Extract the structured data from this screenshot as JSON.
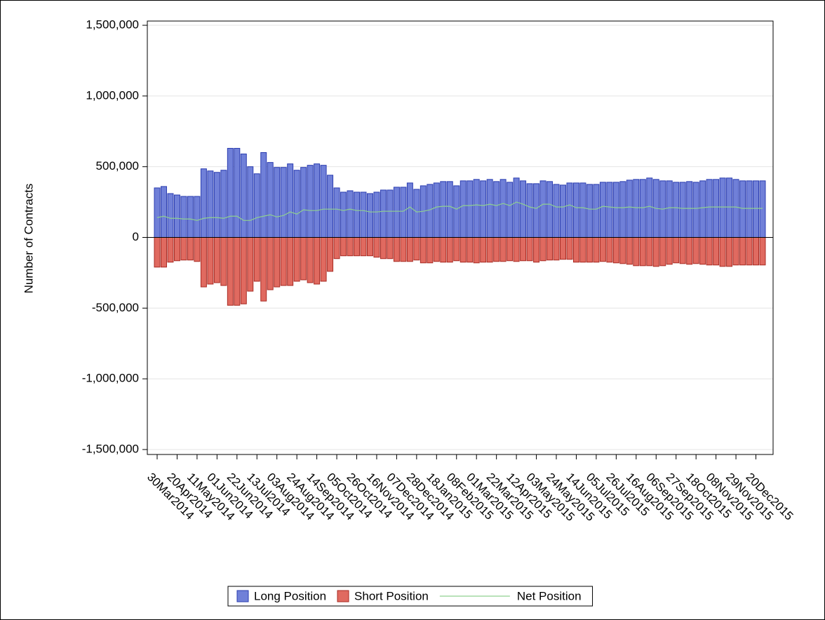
{
  "chart_data": {
    "type": "bar",
    "y_label": "Number of Contracts",
    "categories": [
      "30Mar2014",
      null,
      null,
      "20Apr2014",
      null,
      null,
      "11May2014",
      null,
      null,
      "01Jun2014",
      null,
      null,
      "22Jun2014",
      null,
      null,
      "13Jul2014",
      null,
      null,
      "03Aug2014",
      null,
      null,
      "24Aug2014",
      null,
      null,
      "14Sep2014",
      null,
      null,
      "05Oct2014",
      null,
      null,
      "26Oct2014",
      null,
      null,
      "16Nov2014",
      null,
      null,
      "07Dec2014",
      null,
      null,
      "28Dec2014",
      null,
      null,
      "18Jan2015",
      null,
      null,
      "08Feb2015",
      null,
      null,
      "01Mar2015",
      null,
      null,
      "22Mar2015",
      null,
      null,
      "12Apr2015",
      null,
      null,
      "03May2015",
      null,
      null,
      "24May2015",
      null,
      null,
      "14Jun2015",
      null,
      null,
      "05Jul2015",
      null,
      null,
      "26Jul2015",
      null,
      null,
      "16Aug2015",
      null,
      null,
      "06Sep2015",
      null,
      null,
      "27Sep2015",
      null,
      null,
      "18Oct2015",
      null,
      null,
      "08Nov2015",
      null,
      null,
      "29Nov2015",
      null,
      null,
      "20Dec2015",
      null
    ],
    "series": [
      {
        "name": "Long Position",
        "type": "bar",
        "color": "#7080d8",
        "stroke": "#2a3cb0",
        "values": [
          350000,
          360000,
          310000,
          300000,
          290000,
          290000,
          290000,
          485000,
          470000,
          460000,
          475000,
          630000,
          630000,
          590000,
          500000,
          450000,
          600000,
          530000,
          495000,
          495000,
          520000,
          475000,
          495000,
          510000,
          520000,
          510000,
          440000,
          350000,
          320000,
          330000,
          320000,
          320000,
          310000,
          320000,
          335000,
          335000,
          355000,
          355000,
          385000,
          340000,
          365000,
          375000,
          385000,
          395000,
          395000,
          365000,
          400000,
          400000,
          410000,
          400000,
          410000,
          395000,
          410000,
          390000,
          420000,
          400000,
          380000,
          380000,
          400000,
          395000,
          375000,
          370000,
          385000,
          385000,
          385000,
          375000,
          375000,
          390000,
          390000,
          390000,
          395000,
          405000,
          410000,
          410000,
          420000,
          410000,
          400000,
          400000,
          390000,
          390000,
          395000,
          390000,
          400000,
          410000,
          410000,
          420000,
          420000,
          410000,
          400000,
          400000,
          400000,
          400000
        ]
      },
      {
        "name": "Short Position",
        "type": "bar",
        "color": "#e06a60",
        "stroke": "#a82a22",
        "values": [
          -210000,
          -210000,
          -175000,
          -165000,
          -160000,
          -160000,
          -170000,
          -350000,
          -330000,
          -320000,
          -340000,
          -480000,
          -480000,
          -470000,
          -380000,
          -310000,
          -450000,
          -370000,
          -350000,
          -340000,
          -340000,
          -310000,
          -300000,
          -320000,
          -330000,
          -310000,
          -240000,
          -150000,
          -130000,
          -130000,
          -130000,
          -130000,
          -130000,
          -140000,
          -150000,
          -150000,
          -170000,
          -170000,
          -170000,
          -160000,
          -180000,
          -180000,
          -170000,
          -175000,
          -175000,
          -165000,
          -175000,
          -175000,
          -180000,
          -175000,
          -175000,
          -170000,
          -170000,
          -165000,
          -170000,
          -165000,
          -165000,
          -175000,
          -165000,
          -160000,
          -160000,
          -155000,
          -155000,
          -175000,
          -175000,
          -175000,
          -175000,
          -170000,
          -175000,
          -180000,
          -185000,
          -190000,
          -200000,
          -200000,
          -200000,
          -205000,
          -200000,
          -190000,
          -180000,
          -185000,
          -190000,
          -185000,
          -190000,
          -195000,
          -195000,
          -205000,
          -205000,
          -195000,
          -195000,
          -195000,
          -195000,
          -195000
        ]
      },
      {
        "name": "Net Position",
        "type": "line",
        "color": "#8fd08f",
        "values": [
          140000,
          150000,
          135000,
          135000,
          130000,
          130000,
          120000,
          135000,
          140000,
          140000,
          135000,
          150000,
          150000,
          120000,
          120000,
          140000,
          150000,
          160000,
          145000,
          155000,
          180000,
          165000,
          195000,
          190000,
          190000,
          200000,
          200000,
          200000,
          190000,
          200000,
          190000,
          190000,
          180000,
          180000,
          185000,
          185000,
          185000,
          185000,
          215000,
          180000,
          185000,
          195000,
          215000,
          220000,
          220000,
          200000,
          225000,
          225000,
          230000,
          225000,
          235000,
          225000,
          240000,
          225000,
          250000,
          235000,
          215000,
          205000,
          235000,
          235000,
          215000,
          215000,
          230000,
          210000,
          210000,
          200000,
          200000,
          220000,
          215000,
          210000,
          210000,
          215000,
          210000,
          210000,
          220000,
          205000,
          200000,
          210000,
          210000,
          205000,
          205000,
          205000,
          210000,
          215000,
          215000,
          215000,
          215000,
          215000,
          205000,
          205000,
          205000,
          205000
        ]
      }
    ],
    "ylim": [
      -1535000,
      1530000
    ],
    "yticks": [
      {
        "value": -1500000,
        "label": "-1,500,000"
      },
      {
        "value": -1000000,
        "label": "-1,000,000"
      },
      {
        "value": -500000,
        "label": "-500,000"
      },
      0,
      {
        "value": 500000,
        "label": "500,000"
      },
      {
        "value": 1000000,
        "label": "1,000,000"
      },
      {
        "value": 1500000,
        "label": "1,500,000"
      }
    ],
    "grid": true,
    "legend": "bottom"
  }
}
